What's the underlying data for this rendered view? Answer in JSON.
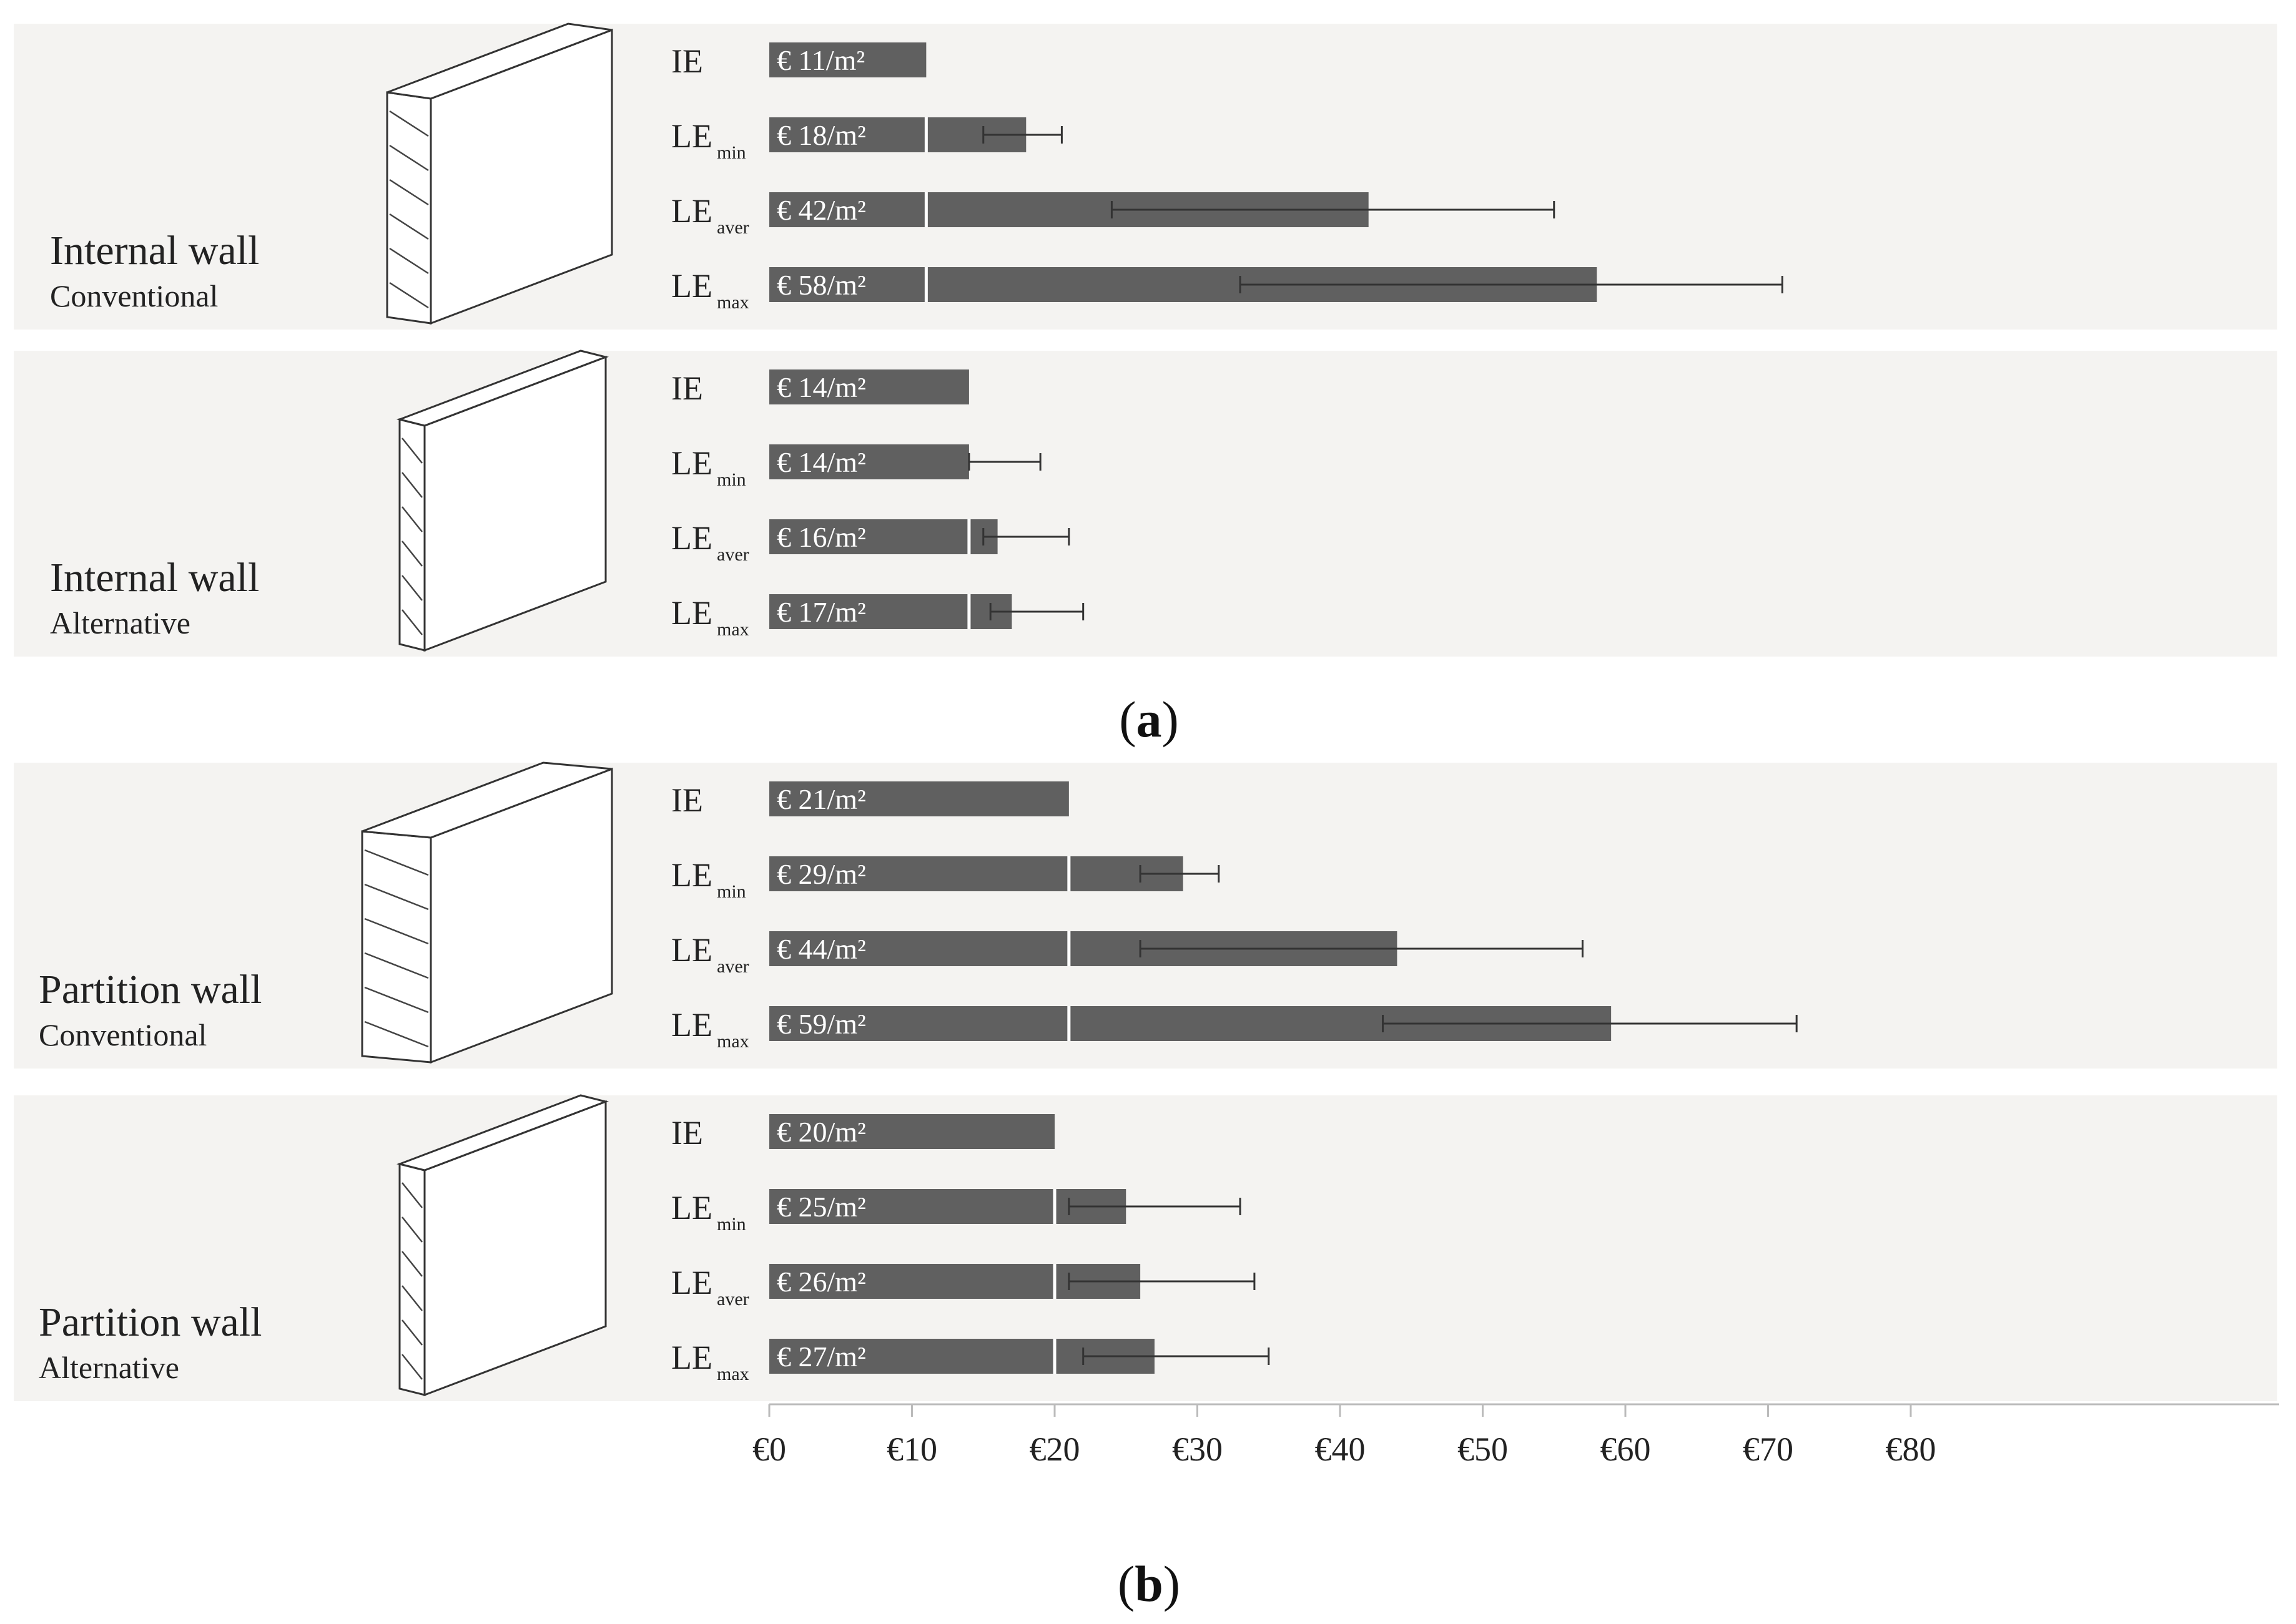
{
  "chart_data": {
    "type": "bar",
    "orientation": "horizontal",
    "xlim": [
      0,
      80
    ],
    "x_ticks": [
      "€0",
      "€10",
      "€20",
      "€30",
      "€40",
      "€50",
      "€60",
      "€70",
      "€80"
    ],
    "panel_letters": [
      "a",
      "b"
    ],
    "groups": [
      {
        "title": "Internal wall",
        "subtitle": "Conventional",
        "panel": "a",
        "rows": [
          {
            "label": "IE",
            "sub": "",
            "value": 11,
            "ie_value": 11,
            "value_label": "€ 11/m²",
            "err": null
          },
          {
            "label": "LE",
            "sub": "min",
            "value": 18,
            "ie_value": 11,
            "value_label": "€ 18/m²",
            "err": [
              15,
              20.5
            ]
          },
          {
            "label": "LE",
            "sub": "aver",
            "value": 42,
            "ie_value": 11,
            "value_label": "€ 42/m²",
            "err": [
              24,
              55
            ]
          },
          {
            "label": "LE",
            "sub": "max",
            "value": 58,
            "ie_value": 11,
            "value_label": "€ 58/m²",
            "err": [
              33,
              71
            ]
          }
        ]
      },
      {
        "title": "Internal wall",
        "subtitle": "Alternative",
        "panel": "a",
        "rows": [
          {
            "label": "IE",
            "sub": "",
            "value": 14,
            "ie_value": 14,
            "value_label": "€ 14/m²",
            "err": null
          },
          {
            "label": "LE",
            "sub": "min",
            "value": 14,
            "ie_value": 14,
            "value_label": "€ 14/m²",
            "err": [
              14,
              19
            ]
          },
          {
            "label": "LE",
            "sub": "aver",
            "value": 16,
            "ie_value": 14,
            "value_label": "€ 16/m²",
            "err": [
              15,
              21
            ]
          },
          {
            "label": "LE",
            "sub": "max",
            "value": 17,
            "ie_value": 14,
            "value_label": "€ 17/m²",
            "err": [
              15.5,
              22
            ]
          }
        ]
      },
      {
        "title": "Partition wall",
        "subtitle": "Conventional",
        "panel": "b",
        "rows": [
          {
            "label": "IE",
            "sub": "",
            "value": 21,
            "ie_value": 21,
            "value_label": "€ 21/m²",
            "err": null
          },
          {
            "label": "LE",
            "sub": "min",
            "value": 29,
            "ie_value": 21,
            "value_label": "€ 29/m²",
            "err": [
              26,
              31.5
            ]
          },
          {
            "label": "LE",
            "sub": "aver",
            "value": 44,
            "ie_value": 21,
            "value_label": "€ 44/m²",
            "err": [
              26,
              57
            ]
          },
          {
            "label": "LE",
            "sub": "max",
            "value": 59,
            "ie_value": 21,
            "value_label": "€ 59/m²",
            "err": [
              43,
              72
            ]
          }
        ]
      },
      {
        "title": "Partition wall",
        "subtitle": "Alternative",
        "panel": "b",
        "rows": [
          {
            "label": "IE",
            "sub": "",
            "value": 20,
            "ie_value": 20,
            "value_label": "€ 20/m²",
            "err": null
          },
          {
            "label": "LE",
            "sub": "min",
            "value": 25,
            "ie_value": 20,
            "value_label": "€ 25/m²",
            "err": [
              21,
              33
            ]
          },
          {
            "label": "LE",
            "sub": "aver",
            "value": 26,
            "ie_value": 20,
            "value_label": "€ 26/m²",
            "err": [
              21,
              34
            ]
          },
          {
            "label": "LE",
            "sub": "max",
            "value": 27,
            "ie_value": 20,
            "value_label": "€ 27/m²",
            "err": [
              22,
              35
            ]
          }
        ]
      }
    ]
  }
}
